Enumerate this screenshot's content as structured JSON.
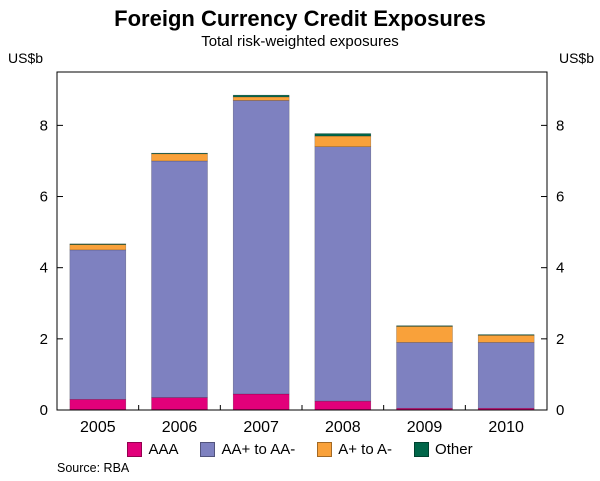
{
  "title": "Foreign Currency Credit Exposures",
  "subtitle": "Total risk-weighted exposures",
  "axis": {
    "unit_left": "US$b",
    "unit_right": "US$b"
  },
  "source": "Source: RBA",
  "chart_data": {
    "type": "bar",
    "stacked": true,
    "title": "Foreign Currency Credit Exposures",
    "subtitle": "Total risk-weighted exposures",
    "ylabel": "US$b",
    "categories": [
      "2005",
      "2006",
      "2007",
      "2008",
      "2009",
      "2010"
    ],
    "series": [
      {
        "name": "AAA",
        "color": "#e2007a",
        "values": [
          0.3,
          0.35,
          0.45,
          0.25,
          0.05,
          0.05
        ]
      },
      {
        "name": "AA+ to AA-",
        "color": "#7e81c0",
        "values": [
          4.2,
          6.65,
          8.25,
          7.15,
          1.85,
          1.85
        ]
      },
      {
        "name": "A+ to A-",
        "color": "#f9a13a",
        "values": [
          0.15,
          0.2,
          0.1,
          0.3,
          0.45,
          0.2
        ]
      },
      {
        "name": "Other",
        "color": "#006649",
        "values": [
          0.02,
          0.02,
          0.05,
          0.07,
          0.02,
          0.02
        ]
      }
    ],
    "totals": [
      4.67,
      7.22,
      8.85,
      7.77,
      2.37,
      2.12
    ],
    "ylim": [
      0,
      9.5
    ],
    "yticks": [
      0,
      2,
      4,
      6,
      8
    ],
    "grid": false,
    "legend_position": "bottom"
  }
}
